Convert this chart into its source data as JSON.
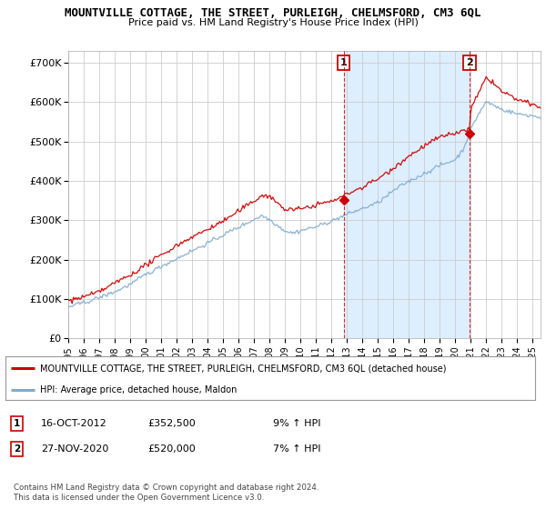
{
  "title": "MOUNTVILLE COTTAGE, THE STREET, PURLEIGH, CHELMSFORD, CM3 6QL",
  "subtitle": "Price paid vs. HM Land Registry's House Price Index (HPI)",
  "ylabel_ticks": [
    "£0",
    "£100K",
    "£200K",
    "£300K",
    "£400K",
    "£500K",
    "£600K",
    "£700K"
  ],
  "ytick_values": [
    0,
    100000,
    200000,
    300000,
    400000,
    500000,
    600000,
    700000
  ],
  "ylim": [
    0,
    730000
  ],
  "xlim_start": 1995.0,
  "xlim_end": 2025.5,
  "sale1_x": 2012.79,
  "sale1_y": 352500,
  "sale1_label": "1",
  "sale1_date": "16-OCT-2012",
  "sale1_price": "£352,500",
  "sale1_hpi": "9% ↑ HPI",
  "sale2_x": 2020.92,
  "sale2_y": 520000,
  "sale2_label": "2",
  "sale2_date": "27-NOV-2020",
  "sale2_price": "£520,000",
  "sale2_hpi": "7% ↑ HPI",
  "line_color_property": "#cc0000",
  "line_color_hpi": "#7faacc",
  "shade_color": "#ddeeff",
  "background_color": "#ffffff",
  "grid_color": "#cccccc",
  "legend_property_label": "MOUNTVILLE COTTAGE, THE STREET, PURLEIGH, CHELMSFORD, CM3 6QL (detached house)",
  "legend_hpi_label": "HPI: Average price, detached house, Maldon",
  "copyright_text": "Contains HM Land Registry data © Crown copyright and database right 2024.\nThis data is licensed under the Open Government Licence v3.0.",
  "xticks": [
    1995,
    1996,
    1997,
    1998,
    1999,
    2000,
    2001,
    2002,
    2003,
    2004,
    2005,
    2006,
    2007,
    2008,
    2009,
    2010,
    2011,
    2012,
    2013,
    2014,
    2015,
    2016,
    2017,
    2018,
    2019,
    2020,
    2021,
    2022,
    2023,
    2024,
    2025
  ]
}
